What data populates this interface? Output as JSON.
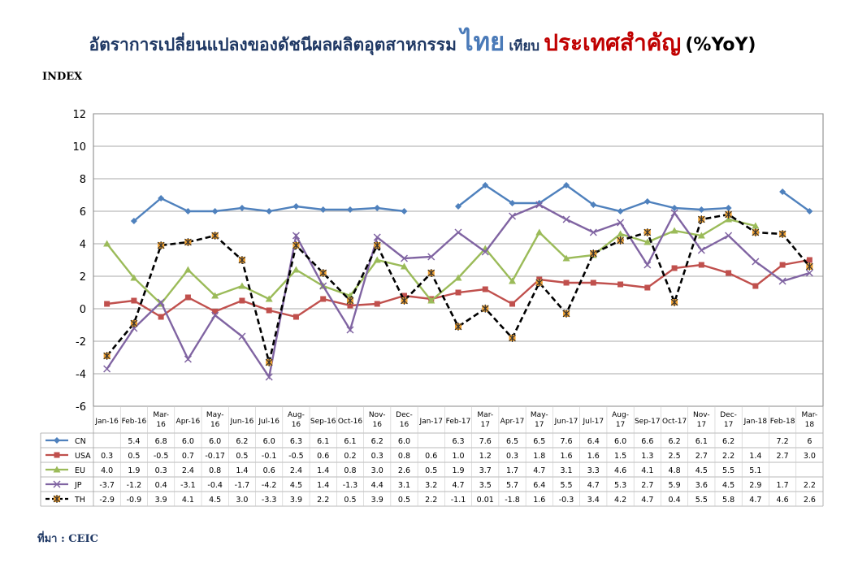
{
  "title": {
    "part1": "อัตราการเปลี่ยนแปลงของดัชนีผลผลิตอุตสาหกรรม",
    "part2": "ไทย",
    "part3": "เทียบ",
    "part4": "ประเทศสำคัญ",
    "part5": "(%YoY)"
  },
  "source": "ที่มา : CEIC",
  "chart_data": {
    "type": "line",
    "ylabel": "INDEX",
    "ylim": [
      -6,
      12
    ],
    "yticks": [
      "12",
      "10",
      "8",
      "6",
      "4",
      "2",
      "0",
      "-2",
      "-4",
      "-6"
    ],
    "grid": true,
    "legend": "table-below",
    "categories": [
      "Jan-16",
      "Feb-16",
      "Mar-16",
      "Apr-16",
      "May-16",
      "Jun-16",
      "Jul-16",
      "Aug-16",
      "Sep-16",
      "Oct-16",
      "Nov-16",
      "Dec-16",
      "Jan-17",
      "Feb-17",
      "Mar-17",
      "Apr-17",
      "May-17",
      "Jun-17",
      "Jul-17",
      "Aug-17",
      "Sep-17",
      "Oct-17",
      "Nov-17",
      "Dec-17",
      "Jan-18",
      "Feb-18",
      "Mar-18"
    ],
    "series": [
      {
        "name": "CN",
        "color": "#4f81bd",
        "marker": "diamond",
        "dash": false,
        "values": [
          null,
          5.4,
          6.8,
          6.0,
          6.0,
          6.2,
          6.0,
          6.3,
          6.1,
          6.1,
          6.2,
          6.0,
          null,
          6.3,
          7.6,
          6.5,
          6.5,
          7.6,
          6.4,
          6.0,
          6.6,
          6.2,
          6.1,
          6.2,
          null,
          7.2,
          6
        ],
        "labels": [
          "",
          "5.4",
          "6.8",
          "6.0",
          "6.0",
          "6.2",
          "6.0",
          "6.3",
          "6.1",
          "6.1",
          "6.2",
          "6.0",
          "",
          "6.3",
          "7.6",
          "6.5",
          "6.5",
          "7.6",
          "6.4",
          "6.0",
          "6.6",
          "6.2",
          "6.1",
          "6.2",
          "",
          "7.2",
          "6"
        ]
      },
      {
        "name": "USA",
        "color": "#c0504d",
        "marker": "square",
        "dash": false,
        "values": [
          0.3,
          0.5,
          -0.5,
          0.7,
          -0.17,
          0.5,
          -0.1,
          -0.5,
          0.6,
          0.2,
          0.3,
          0.8,
          0.6,
          1.0,
          1.2,
          0.3,
          1.8,
          1.6,
          1.6,
          1.5,
          1.3,
          2.5,
          2.7,
          2.2,
          1.4,
          2.7,
          3.0
        ],
        "labels": [
          "0.3",
          "0.5",
          "-0.5",
          "0.7",
          "-0.17",
          "0.5",
          "-0.1",
          "-0.5",
          "0.6",
          "0.2",
          "0.3",
          "0.8",
          "0.6",
          "1.0",
          "1.2",
          "0.3",
          "1.8",
          "1.6",
          "1.6",
          "1.5",
          "1.3",
          "2.5",
          "2.7",
          "2.2",
          "1.4",
          "2.7",
          "3.0"
        ]
      },
      {
        "name": "EU",
        "color": "#9bbb59",
        "marker": "triangle",
        "dash": false,
        "values": [
          4.0,
          1.9,
          0.3,
          2.4,
          0.8,
          1.4,
          0.6,
          2.4,
          1.4,
          0.8,
          3.0,
          2.6,
          0.5,
          1.9,
          3.7,
          1.7,
          4.7,
          3.1,
          3.3,
          4.6,
          4.1,
          4.8,
          4.5,
          5.5,
          5.1,
          null,
          null
        ],
        "labels": [
          "4.0",
          "1.9",
          "0.3",
          "2.4",
          "0.8",
          "1.4",
          "0.6",
          "2.4",
          "1.4",
          "0.8",
          "3.0",
          "2.6",
          "0.5",
          "1.9",
          "3.7",
          "1.7",
          "4.7",
          "3.1",
          "3.3",
          "4.6",
          "4.1",
          "4.8",
          "4.5",
          "5.5",
          "5.1",
          "",
          ""
        ]
      },
      {
        "name": "JP",
        "color": "#8064a2",
        "marker": "x",
        "dash": false,
        "values": [
          -3.7,
          -1.2,
          0.4,
          -3.1,
          -0.4,
          -1.7,
          -4.2,
          4.5,
          1.4,
          -1.3,
          4.4,
          3.1,
          3.2,
          4.7,
          3.5,
          5.7,
          6.4,
          5.5,
          4.7,
          5.3,
          2.7,
          5.9,
          3.6,
          4.5,
          2.9,
          1.7,
          2.2
        ],
        "labels": [
          "-3.7",
          "-1.2",
          "0.4",
          "-3.1",
          "-0.4",
          "-1.7",
          "-4.2",
          "4.5",
          "1.4",
          "-1.3",
          "4.4",
          "3.1",
          "3.2",
          "4.7",
          "3.5",
          "5.7",
          "6.4",
          "5.5",
          "4.7",
          "5.3",
          "2.7",
          "5.9",
          "3.6",
          "4.5",
          "2.9",
          "1.7",
          "2.2"
        ]
      },
      {
        "name": "TH",
        "color": "#000000",
        "marker": "star",
        "dash": true,
        "values": [
          -2.9,
          -0.9,
          3.9,
          4.1,
          4.5,
          3.0,
          -3.3,
          3.9,
          2.2,
          0.5,
          3.9,
          0.5,
          2.2,
          -1.1,
          0.01,
          -1.8,
          1.6,
          -0.3,
          3.4,
          4.2,
          4.7,
          0.4,
          5.5,
          5.8,
          4.7,
          4.6,
          2.6
        ],
        "labels": [
          "-2.9",
          "-0.9",
          "3.9",
          "4.1",
          "4.5",
          "3.0",
          "-3.3",
          "3.9",
          "2.2",
          "0.5",
          "3.9",
          "0.5",
          "2.2",
          "-1.1",
          "0.01",
          "-1.8",
          "1.6",
          "-0.3",
          "3.4",
          "4.2",
          "4.7",
          "0.4",
          "5.5",
          "5.8",
          "4.7",
          "4.6",
          "2.6"
        ]
      }
    ]
  }
}
